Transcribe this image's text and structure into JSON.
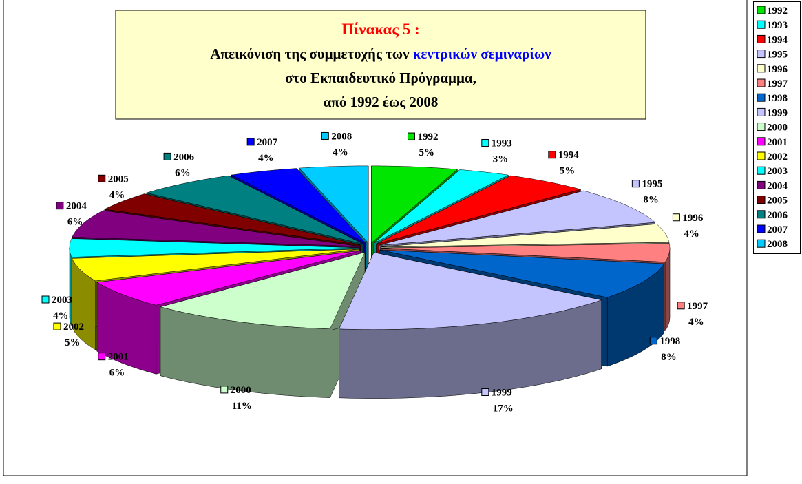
{
  "chart_data": {
    "type": "pie3d",
    "title": {
      "heading": "Πίνακας 5 :",
      "line1": "Απεικόνιση της συμμετοχής των",
      "line1_highlight": "κεντρικών σεμιναρίων",
      "line2": "στο Εκπαιδευτικό Πρόγραμμα,",
      "line3": "από 1992 έως 2008"
    },
    "categories": [
      "1992",
      "1993",
      "1994",
      "1995",
      "1996",
      "1997",
      "1998",
      "1999",
      "2000",
      "2001",
      "2002",
      "2003",
      "2004",
      "2005",
      "2006",
      "2007",
      "2008"
    ],
    "values": [
      5,
      3,
      5,
      8,
      4,
      4,
      8,
      17,
      11,
      6,
      5,
      4,
      6,
      4,
      6,
      4,
      4
    ],
    "value_labels": [
      "5%",
      "3%",
      "5%",
      "8%",
      "4%",
      "4%",
      "8%",
      "17%",
      "11%",
      "6%",
      "5%",
      "4%",
      "6%",
      "4%",
      "6%",
      "4%",
      "4%"
    ],
    "colors": [
      "#00e600",
      "#00ffff",
      "#ff0000",
      "#c4c4ff",
      "#ffffcc",
      "#ff8080",
      "#0066cc",
      "#c4c4ff",
      "#ccffcc",
      "#ff00ff",
      "#ffff00",
      "#00ffff",
      "#800080",
      "#800000",
      "#008080",
      "#0000ff",
      "#00ccff"
    ],
    "legend": "right"
  }
}
